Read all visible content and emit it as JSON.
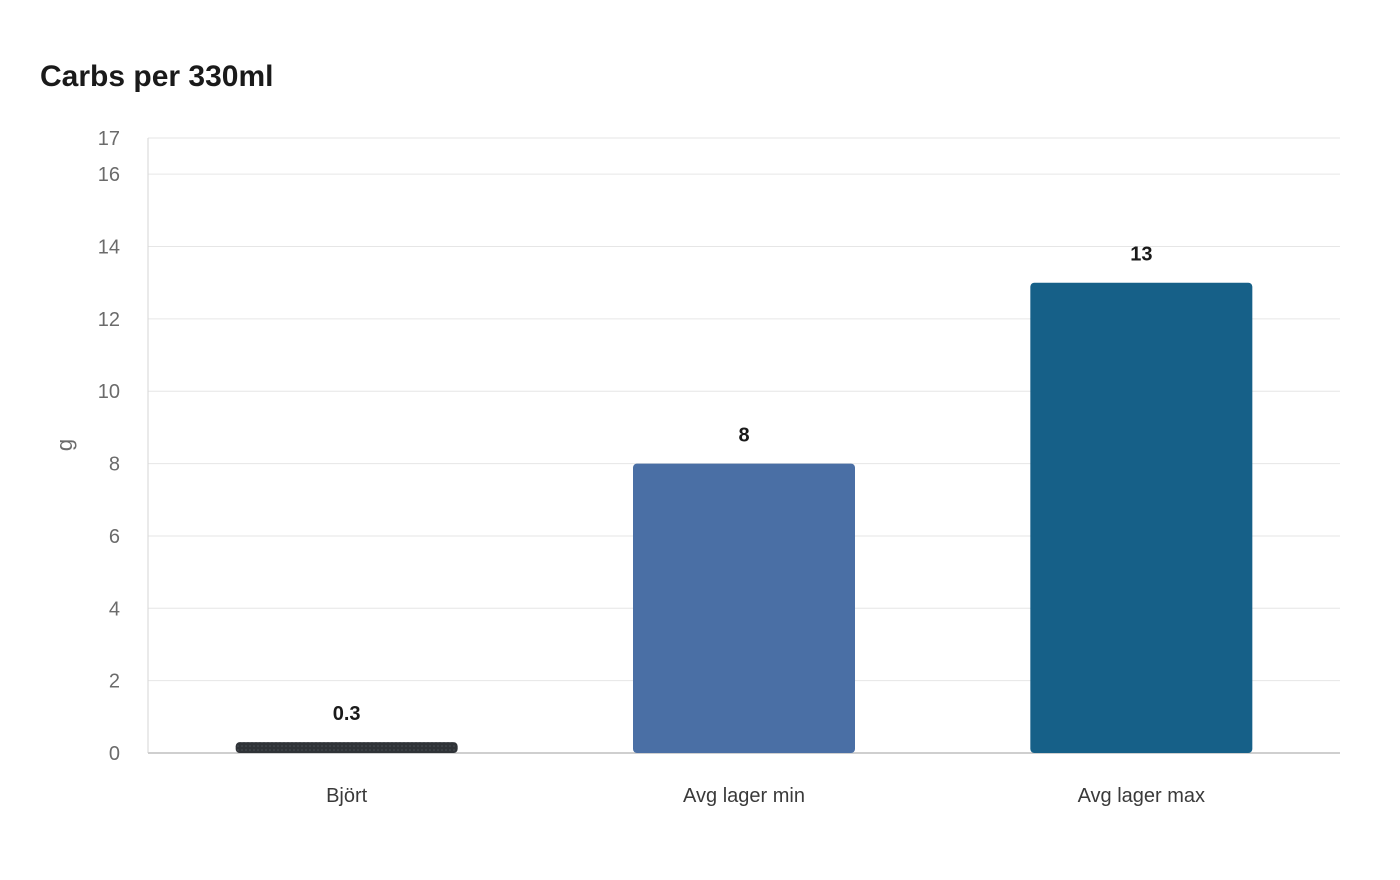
{
  "chart_data": {
    "type": "bar",
    "title": "Carbs per 330ml",
    "xlabel": "",
    "ylabel": "g",
    "ylim": [
      0,
      17
    ],
    "yticks": [
      0,
      2,
      4,
      6,
      8,
      10,
      12,
      14,
      16,
      17
    ],
    "categories": [
      "Björt",
      "Avg lager min",
      "Avg lager max"
    ],
    "values": [
      0.3,
      8,
      13
    ],
    "data_labels": [
      "0.3",
      "8",
      "13"
    ],
    "bar_colors": [
      "#2f3337",
      "#4a6fa5",
      "#166088"
    ],
    "grid": true,
    "legend": "none"
  }
}
